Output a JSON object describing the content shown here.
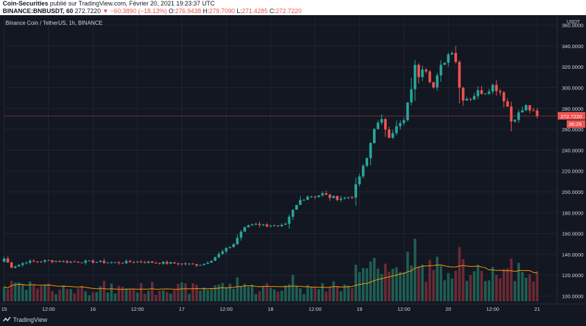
{
  "header": {
    "publisher": "Coin-Securities",
    "published_text": "publié sur TradingView.com, Février 20, 2021 19:23:37 UTC",
    "symbol": "BINANCE:BNBUSDT, 60",
    "price": "272.7220",
    "change": "−60.3890 (−18.13%)",
    "o_label": "O:",
    "o_value": "276.9438",
    "h_label": "H:",
    "h_value": "279.7090",
    "l_label": "L:",
    "l_value": "271.4285",
    "c_label": "C:",
    "c_value": "272.7220"
  },
  "footer": {
    "brand": "TradingView"
  },
  "colors": {
    "background": "#131722",
    "up": "#26a69a",
    "down": "#ef5350",
    "volume_up": "#1f5e52",
    "volume_down": "#6b2a34",
    "ma": "#ff9800",
    "grid": "#1f2433",
    "text": "#d1d4dc"
  },
  "chart_data": {
    "type": "candlestick",
    "title": "Binance Coin / TetherUS, 1h, BINANCE",
    "currency_label": "USDT",
    "y_ticks": [
      "360.0000",
      "340.0000",
      "320.0000",
      "300.0000",
      "280.0000",
      "260.0000",
      "240.0000",
      "220.0000",
      "200.0000",
      "180.0000",
      "160.0000",
      "140.0000",
      "120.0000",
      "100.0000"
    ],
    "y_tick_values": [
      360,
      340,
      320,
      300,
      280,
      260,
      240,
      220,
      200,
      180,
      160,
      140,
      120,
      100
    ],
    "ylim": [
      95,
      367
    ],
    "x_ticks": [
      {
        "label": "15",
        "hour": 0
      },
      {
        "label": "12:00",
        "hour": 12
      },
      {
        "label": "16",
        "hour": 24
      },
      {
        "label": "12:00",
        "hour": 36
      },
      {
        "label": "17",
        "hour": 48
      },
      {
        "label": "12:00",
        "hour": 60
      },
      {
        "label": "18",
        "hour": 72
      },
      {
        "label": "12:00",
        "hour": 84
      },
      {
        "label": "19",
        "hour": 96
      },
      {
        "label": "12:00",
        "hour": 108
      },
      {
        "label": "20",
        "hour": 120
      },
      {
        "label": "12:00",
        "hour": 132
      },
      {
        "label": "21",
        "hour": 144
      }
    ],
    "x_range_hours": [
      0,
      149
    ],
    "last_price_label": "272.7220",
    "last_price": 272.722,
    "countdown_label": "36:26",
    "price_anchors": [
      [
        0,
        136
      ],
      [
        2,
        128
      ],
      [
        4,
        130
      ],
      [
        6,
        133
      ],
      [
        8,
        133
      ],
      [
        12,
        134
      ],
      [
        16,
        133
      ],
      [
        20,
        133
      ],
      [
        24,
        133
      ],
      [
        30,
        132
      ],
      [
        36,
        133
      ],
      [
        42,
        132
      ],
      [
        48,
        131
      ],
      [
        52,
        130
      ],
      [
        54,
        131
      ],
      [
        56,
        135
      ],
      [
        58,
        140
      ],
      [
        60,
        145
      ],
      [
        62,
        150
      ],
      [
        64,
        162
      ],
      [
        66,
        168
      ],
      [
        68,
        170
      ],
      [
        70,
        168
      ],
      [
        72,
        168
      ],
      [
        74,
        166
      ],
      [
        76,
        168
      ],
      [
        78,
        182
      ],
      [
        80,
        192
      ],
      [
        82,
        196
      ],
      [
        84,
        196
      ],
      [
        86,
        198
      ],
      [
        88,
        195
      ],
      [
        90,
        194
      ],
      [
        92,
        194
      ],
      [
        94,
        196
      ],
      [
        96,
        215
      ],
      [
        98,
        232
      ],
      [
        100,
        262
      ],
      [
        102,
        268
      ],
      [
        104,
        254
      ],
      [
        106,
        262
      ],
      [
        108,
        268
      ],
      [
        110,
        300
      ],
      [
        111,
        320
      ],
      [
        112,
        312
      ],
      [
        113,
        320
      ],
      [
        114,
        318
      ],
      [
        115,
        308
      ],
      [
        116,
        300
      ],
      [
        118,
        320
      ],
      [
        120,
        332
      ],
      [
        121,
        336
      ],
      [
        122,
        326
      ],
      [
        123,
        300
      ],
      [
        124,
        290
      ],
      [
        126,
        290
      ],
      [
        128,
        296
      ],
      [
        130,
        296
      ],
      [
        132,
        302
      ],
      [
        134,
        296
      ],
      [
        136,
        282
      ],
      [
        137,
        268
      ],
      [
        139,
        275
      ],
      [
        141,
        282
      ],
      [
        143,
        276
      ],
      [
        144,
        272.72
      ]
    ],
    "volume_ylim": [
      0,
      180
    ]
  }
}
